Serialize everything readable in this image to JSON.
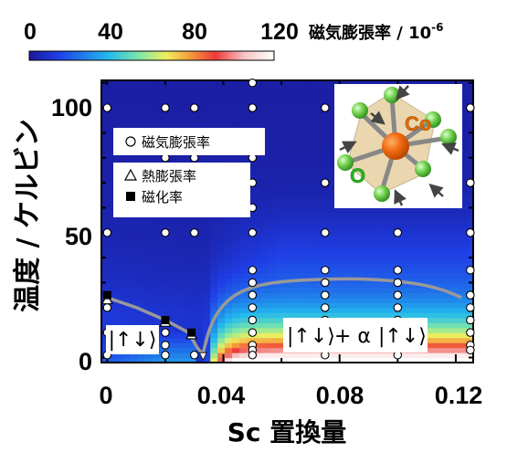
{
  "chart_data": {
    "type": "heatmap",
    "xlabel": "Sc 置換量",
    "ylabel": "温度 / ケルビン",
    "xlim": [
      -0.002,
      0.126
    ],
    "ylim": [
      -2,
      111
    ],
    "xticks": [
      "0",
      "0.04",
      "0.08",
      "0.12"
    ],
    "yticks": [
      "0",
      "50",
      "100"
    ],
    "colorbar": {
      "title": "磁気膨張率 / 10",
      "exponent": "-6",
      "ticks": [
        "0",
        "40",
        "80",
        "120"
      ],
      "range": [
        0,
        130
      ],
      "colors": [
        "#1a1a9a",
        "#1f3fe6",
        "#22b8ee",
        "#7fe8a8",
        "#f0ee5c",
        "#f59a3c",
        "#ee3a3a",
        "#f7c6c6",
        "#ffffff"
      ]
    },
    "legend": [
      {
        "marker": "circle",
        "label": "磁気膨張率"
      },
      {
        "marker": "triangle",
        "label": "熱膨張率"
      },
      {
        "marker": "square",
        "label": "磁化率"
      }
    ],
    "boundary_line": [
      [
        0,
        24
      ],
      [
        0.01,
        20
      ],
      [
        0.02,
        15
      ],
      [
        0.028,
        10
      ],
      [
        0.031,
        4
      ],
      [
        0.033,
        1
      ]
    ],
    "upper_line": [
      [
        0.033,
        2
      ],
      [
        0.036,
        15
      ],
      [
        0.042,
        24
      ],
      [
        0.05,
        28.5
      ],
      [
        0.06,
        30.5
      ],
      [
        0.075,
        31.5
      ],
      [
        0.09,
        31.5
      ],
      [
        0.105,
        30
      ],
      [
        0.115,
        27.5
      ],
      [
        0.122,
        24
      ]
    ],
    "circles": [
      [
        0,
        100
      ],
      [
        0,
        50
      ],
      [
        0,
        20
      ],
      [
        0,
        10
      ],
      [
        0,
        1
      ],
      [
        0.02,
        100
      ],
      [
        0.02,
        80
      ],
      [
        0.02,
        70
      ],
      [
        0.02,
        50
      ],
      [
        0.02,
        10
      ],
      [
        0.02,
        5
      ],
      [
        0.02,
        1
      ],
      [
        0.03,
        100
      ],
      [
        0.03,
        80
      ],
      [
        0.03,
        70
      ],
      [
        0.03,
        50
      ],
      [
        0.03,
        1
      ],
      [
        0.05,
        110
      ],
      [
        0.05,
        100
      ],
      [
        0.05,
        90
      ],
      [
        0.05,
        80
      ],
      [
        0.05,
        70
      ],
      [
        0.05,
        60
      ],
      [
        0.05,
        50
      ],
      [
        0.05,
        35
      ],
      [
        0.05,
        30
      ],
      [
        0.05,
        25
      ],
      [
        0.05,
        20
      ],
      [
        0.05,
        15
      ],
      [
        0.05,
        10
      ],
      [
        0.05,
        5
      ],
      [
        0.05,
        3
      ],
      [
        0.05,
        1
      ],
      [
        0.075,
        100
      ],
      [
        0.075,
        70
      ],
      [
        0.075,
        50
      ],
      [
        0.075,
        35
      ],
      [
        0.075,
        30
      ],
      [
        0.075,
        25
      ],
      [
        0.075,
        20
      ],
      [
        0.075,
        15
      ],
      [
        0.075,
        10
      ],
      [
        0.075,
        5
      ],
      [
        0.075,
        3
      ],
      [
        0.075,
        1
      ],
      [
        0.1,
        100
      ],
      [
        0.1,
        50
      ],
      [
        0.1,
        35
      ],
      [
        0.1,
        30
      ],
      [
        0.1,
        25
      ],
      [
        0.1,
        20
      ],
      [
        0.1,
        15
      ],
      [
        0.1,
        10
      ],
      [
        0.1,
        5
      ],
      [
        0.1,
        3
      ],
      [
        0.1,
        1
      ],
      [
        0.125,
        100
      ],
      [
        0.125,
        70
      ],
      [
        0.125,
        50
      ],
      [
        0.125,
        35
      ],
      [
        0.125,
        25
      ],
      [
        0.125,
        20
      ],
      [
        0.125,
        15
      ],
      [
        0.125,
        10
      ],
      [
        0.125,
        5
      ],
      [
        0.125,
        3
      ]
    ],
    "triangles": [
      [
        0,
        23
      ],
      [
        0.02,
        14
      ],
      [
        0.029,
        9
      ]
    ],
    "squares": [
      [
        0,
        25
      ],
      [
        0.02,
        15
      ],
      [
        0.029,
        10
      ]
    ],
    "arrows": [
      [
        0.033,
        -1
      ]
    ]
  },
  "inset": {
    "label_co": "Co",
    "label_o": "O"
  },
  "states": {
    "low": "|↑↓⟩",
    "high_a": "|↑↓⟩",
    "plus_alpha": "+ α",
    "high_b": "|↑↓⟩"
  }
}
